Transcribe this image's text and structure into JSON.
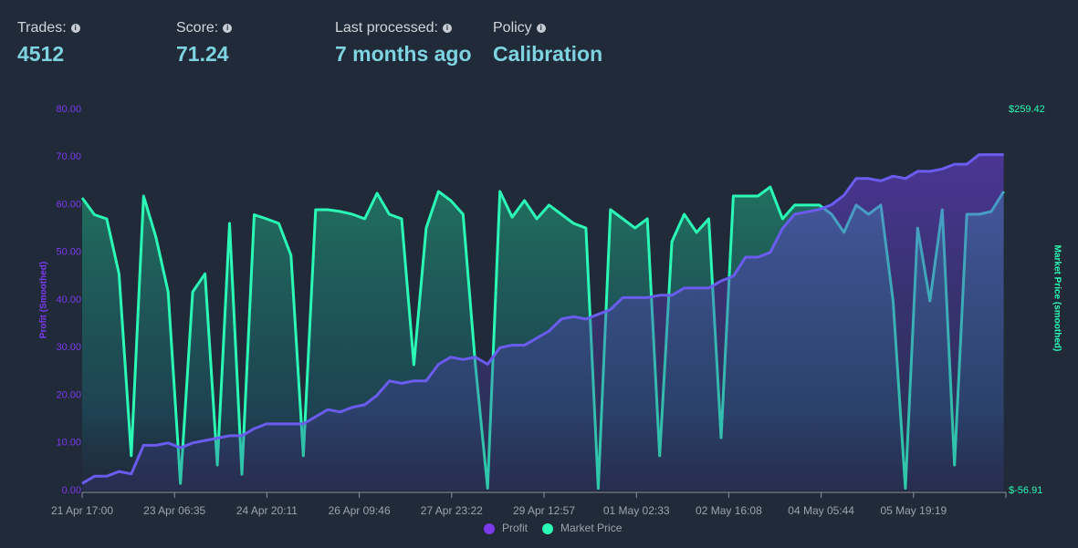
{
  "stats": [
    {
      "label": "Trades:",
      "value": "4512"
    },
    {
      "label": "Score:",
      "value": "71.24"
    },
    {
      "label": "Last processed:",
      "value": "7 months ago"
    },
    {
      "label": "Policy",
      "value": "Calibration"
    }
  ],
  "chart_data": {
    "type": "line",
    "y_label": "Profit (Smoothed)",
    "y2_label": "Market Price (smoothed)",
    "x": [
      0,
      5,
      10,
      15,
      20,
      25,
      30,
      35,
      40,
      45,
      50,
      55,
      60,
      65,
      70,
      75,
      80,
      85,
      90,
      95,
      100,
      105,
      110,
      115,
      120,
      125,
      130,
      135,
      140,
      145,
      150,
      155,
      160,
      165,
      170,
      175,
      180,
      185,
      190,
      195,
      200,
      205,
      210,
      215,
      220,
      225,
      230,
      235,
      240,
      245,
      250,
      255,
      260,
      265,
      270,
      275,
      280,
      285,
      290,
      295,
      300,
      305,
      310,
      315,
      320,
      325,
      330,
      335,
      340,
      345,
      350,
      355,
      360,
      365,
      370,
      375
    ],
    "xlim": [
      0,
      375.9
    ],
    "xticks": [
      {
        "value": 0,
        "label": "21 Apr 17:00"
      },
      {
        "value": 37.58,
        "label": "23 Apr 06:35"
      },
      {
        "value": 75.18,
        "label": "24 Apr 20:11"
      },
      {
        "value": 112.77,
        "label": "26 Apr 09:46"
      },
      {
        "value": 150.37,
        "label": "27 Apr 23:22"
      },
      {
        "value": 187.95,
        "label": "29 Apr 12:57"
      },
      {
        "value": 225.55,
        "label": "01 May 02:33"
      },
      {
        "value": 263.13,
        "label": "02 May 16:08"
      },
      {
        "value": 300.73,
        "label": "04 May 05:44"
      },
      {
        "value": 338.32,
        "label": "05 May 19:19"
      }
    ],
    "ylim": [
      0,
      80
    ],
    "yticks": [
      {
        "value": 0,
        "label": "0.00"
      },
      {
        "value": 10,
        "label": "10.00"
      },
      {
        "value": 20,
        "label": "20.00"
      },
      {
        "value": 30,
        "label": "30.00"
      },
      {
        "value": 40,
        "label": "40.00"
      },
      {
        "value": 50,
        "label": "50.00"
      },
      {
        "value": 60,
        "label": "60.00"
      },
      {
        "value": 70,
        "label": "70.00"
      },
      {
        "value": 80,
        "label": "80.00"
      }
    ],
    "y2lim": [
      -56.91,
      259.42
    ],
    "y2ticks": [
      {
        "value": -56.91,
        "label": "$-56.91"
      },
      {
        "value": 259.42,
        "label": "$259.42"
      }
    ],
    "legend": "bottom",
    "series": [
      {
        "name": "Profit",
        "color": "#7c3aed",
        "values": [
          1.5,
          3,
          3,
          4,
          3.5,
          9.5,
          9.5,
          10,
          9,
          10,
          10.5,
          11,
          11.5,
          11.5,
          13,
          14,
          14,
          14,
          14,
          15.5,
          17,
          16.5,
          17.5,
          18,
          20,
          23,
          22.5,
          23,
          23,
          26.5,
          28,
          27.5,
          28,
          26.5,
          30,
          30.5,
          30.5,
          32,
          33.5,
          36,
          36.5,
          36,
          37,
          38,
          40.5,
          40.5,
          40.5,
          41,
          41,
          42.5,
          42.5,
          42.5,
          44,
          45,
          49,
          49,
          50,
          55,
          58,
          58.5,
          59,
          60,
          62,
          65.5,
          65.5,
          65,
          66,
          65.5,
          67,
          67,
          67.5,
          68.5,
          68.5,
          70.5,
          70.5,
          70.5
        ]
      },
      {
        "name": "Market Price",
        "color": "#2afab5",
        "axis": "y2",
        "values": [
          186,
          172,
          168.6,
          123,
          -28,
          187.5,
          153.5,
          108,
          -51,
          108,
          123,
          -35.7,
          164.8,
          -43.3,
          172,
          168.6,
          164.8,
          138.3,
          -28,
          176.2,
          176.2,
          174.7,
          172.4,
          168.6,
          189.8,
          172.4,
          168.6,
          47.5,
          161,
          191.3,
          183.8,
          172.4,
          47.5,
          -55,
          191.3,
          170,
          183.8,
          168.6,
          180,
          172.4,
          164.8,
          161,
          -55,
          176.2,
          168.6,
          161,
          168.6,
          -28,
          149.7,
          172.4,
          157.3,
          168.6,
          -13,
          187.5,
          187.5,
          187.5,
          195,
          168.6,
          180,
          180,
          180,
          172.4,
          157.3,
          180,
          172.4,
          180,
          100.5,
          -55,
          161,
          100.5,
          176.2,
          -35.7,
          172.4,
          172.4,
          174.7,
          191.3
        ]
      }
    ]
  }
}
